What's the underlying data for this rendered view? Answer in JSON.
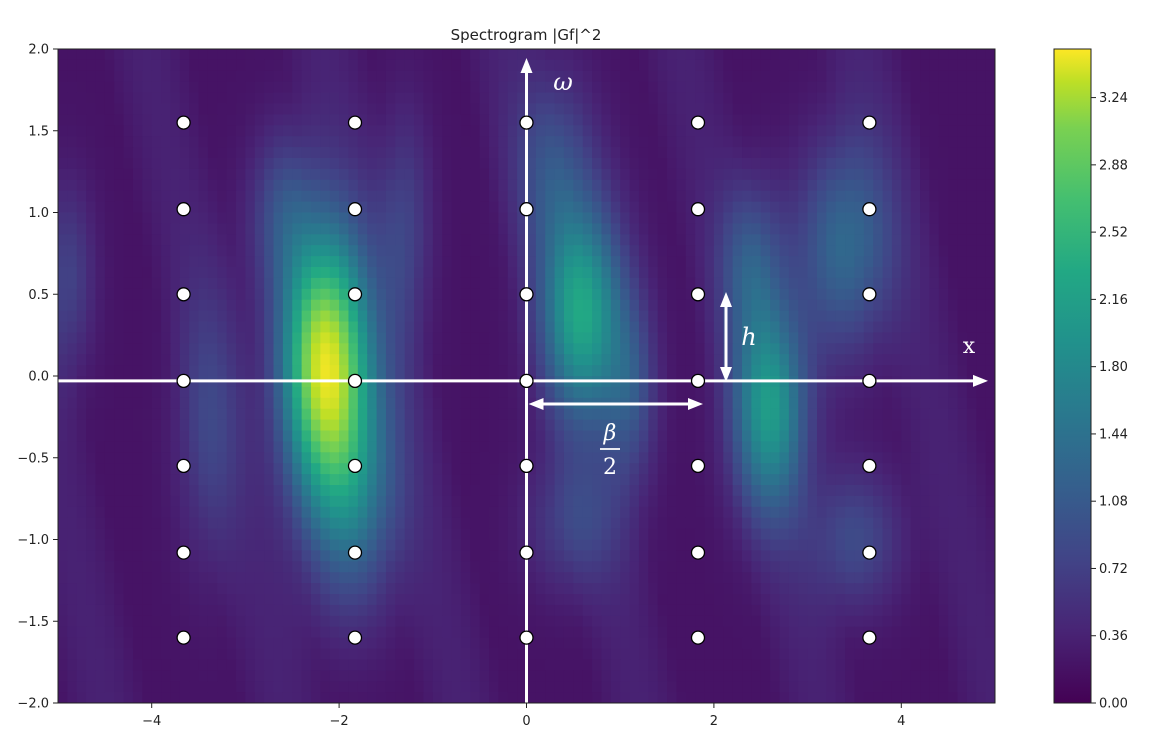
{
  "chart_data": {
    "type": "heatmap",
    "title": "Spectrogram |Gf|^2",
    "xlabel": "",
    "ylabel": "",
    "xlim": [
      -5,
      5
    ],
    "ylim": [
      -2,
      2
    ],
    "x_ticks": [
      -4,
      -2,
      0,
      2,
      4
    ],
    "x_tick_labels": [
      "−4",
      "−2",
      "0",
      "2",
      "4"
    ],
    "y_ticks": [
      2.0,
      1.5,
      1.0,
      0.5,
      0.0,
      -0.5,
      -1.0,
      -1.5,
      -2.0
    ],
    "y_tick_labels": [
      "2.0",
      "1.5",
      "1.0",
      "0.5",
      "0.0",
      "−0.5",
      "−1.0",
      "−1.5",
      "−2.0"
    ],
    "colormap": "viridis",
    "colorbar": {
      "range": [
        0,
        3.5
      ],
      "ticks": [
        0.0,
        0.36,
        0.72,
        1.08,
        1.44,
        1.8,
        2.16,
        2.52,
        2.88,
        3.24
      ],
      "tick_labels": [
        "0.00",
        "0.36",
        "0.72",
        "1.08",
        "1.44",
        "1.80",
        "2.16",
        "2.52",
        "2.88",
        "3.24"
      ]
    },
    "intensity_peaks": [
      {
        "x": -2.1,
        "y": 0.15,
        "value": 3.5
      },
      {
        "x": 0.6,
        "y": 0.4,
        "value": 2.3
      },
      {
        "x": 2.6,
        "y": -0.2,
        "value": 2.0
      }
    ],
    "lattice_points": {
      "x": [
        -3.66,
        -1.83,
        0,
        1.83,
        3.66
      ],
      "y": [
        1.55,
        1.02,
        0.5,
        -0.03,
        -0.55,
        -1.08,
        -1.6
      ]
    },
    "annotations": {
      "omega_label": "ω",
      "x_axis_label": "x",
      "h_label": "h",
      "beta_numerator": "β",
      "beta_denominator": "2"
    },
    "grid": false
  },
  "colors": {
    "lattice_fill": "#ffffff",
    "lattice_stroke": "#000000",
    "arrow": "#ffffff"
  }
}
